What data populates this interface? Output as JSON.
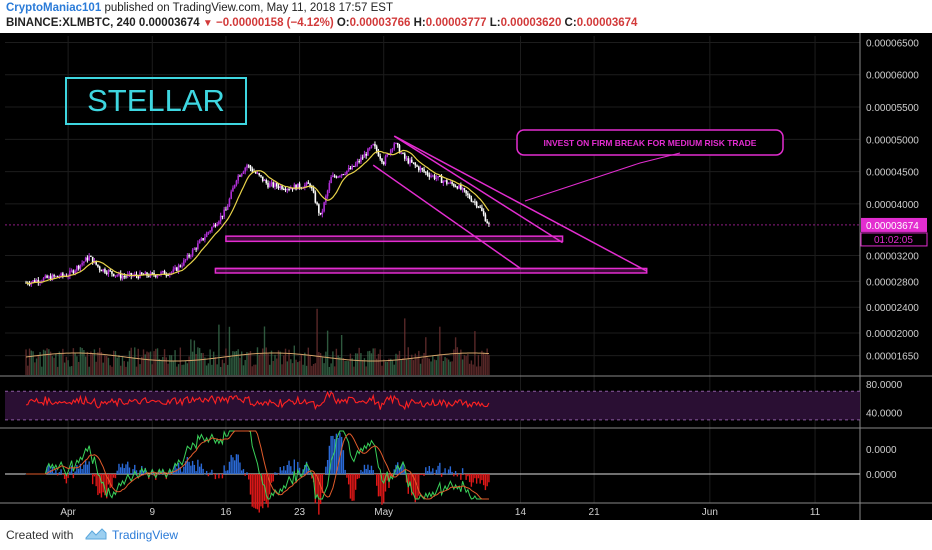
{
  "header": {
    "author": "CryptoManiac101",
    "published_text": "published on TradingView.com, May 11, 2018 17:57 EST",
    "symbol": "BINANCE:XLMBTC, 240",
    "last": "0.00003674",
    "change": "−0.00000158 (−4.12%)",
    "open_label": "O:",
    "open": "0.00003766",
    "high_label": "H:",
    "high": "0.00003777",
    "low_label": "L:",
    "low": "0.00003620",
    "close_label": "C:",
    "close": "0.00003674"
  },
  "footer": {
    "created_with": "Created with",
    "brand": "TradingView"
  },
  "colors": {
    "background": "#000000",
    "up": "#b02fd6",
    "down": "#ffffff",
    "annotation": "#e32dd0",
    "stellar": "#3ed6e0",
    "rsi": "#ff2222",
    "ma": "#e8d34a"
  },
  "chart_data": {
    "type": "candlestick",
    "symbol": "BINANCE:XLMBTC",
    "timeframe": "240",
    "x_tick_labels": [
      "Apr",
      "9",
      "16",
      "23",
      "May",
      "14",
      "21",
      "Jun",
      "11"
    ],
    "price_axis_labels": [
      "0.00006500",
      "0.00006000",
      "0.00005500",
      "0.00005000",
      "0.00004500",
      "0.00004000",
      "0.00003200",
      "0.00002800",
      "0.00002400",
      "0.00002000",
      "0.00001650"
    ],
    "price_range": [
      1.35e-05,
      6.6e-05
    ],
    "current_price": "0.00003674",
    "countdown": "01:02:05",
    "price_path": [
      {
        "date": "Mar 28",
        "price": 2.78e-05
      },
      {
        "date": "Mar 30",
        "price": 2.85e-05
      },
      {
        "date": "Apr 1",
        "price": 2.9e-05
      },
      {
        "date": "Apr 3",
        "price": 3.18e-05
      },
      {
        "date": "Apr 4",
        "price": 3e-05
      },
      {
        "date": "Apr 6",
        "price": 2.88e-05
      },
      {
        "date": "Apr 9",
        "price": 2.9e-05
      },
      {
        "date": "Apr 11",
        "price": 2.95e-05
      },
      {
        "date": "Apr 12",
        "price": 3.1e-05
      },
      {
        "date": "Apr 14",
        "price": 3.5e-05
      },
      {
        "date": "Apr 16",
        "price": 3.9e-05
      },
      {
        "date": "Apr 17",
        "price": 4.4e-05
      },
      {
        "date": "Apr 18",
        "price": 4.6e-05
      },
      {
        "date": "Apr 19",
        "price": 4.45e-05
      },
      {
        "date": "Apr 20",
        "price": 4.3e-05
      },
      {
        "date": "Apr 22",
        "price": 4.25e-05
      },
      {
        "date": "Apr 24",
        "price": 4.3e-05
      },
      {
        "date": "Apr 25",
        "price": 3.8e-05
      },
      {
        "date": "Apr 26",
        "price": 4.4e-05
      },
      {
        "date": "Apr 28",
        "price": 4.55e-05
      },
      {
        "date": "Apr 30",
        "price": 4.9e-05
      },
      {
        "date": "May 1",
        "price": 4.65e-05
      },
      {
        "date": "May 2",
        "price": 4.95e-05
      },
      {
        "date": "May 3",
        "price": 4.7e-05
      },
      {
        "date": "May 5",
        "price": 4.48e-05
      },
      {
        "date": "May 7",
        "price": 4.33e-05
      },
      {
        "date": "May 8",
        "price": 4.28e-05
      },
      {
        "date": "May 9",
        "price": 4.12e-05
      },
      {
        "date": "May 10",
        "price": 3.98e-05
      },
      {
        "date": "May 11",
        "price": 3.67e-05
      }
    ],
    "indicators": {
      "rsi_levels": [
        "80.0000",
        "40.0000"
      ],
      "macd_levels": [
        "0.0000",
        "0.0000"
      ]
    },
    "annotations": {
      "title_box": "STELLAR",
      "callout": "INVEST ON FIRM BREAK FOR MEDIUM RISK TRADE",
      "support_zones": [
        {
          "low": 3.42e-05,
          "high": 3.5e-05
        },
        {
          "low": 2.93e-05,
          "high": 3e-05
        }
      ],
      "channel_upper": [
        {
          "date": "May 2",
          "price": 5.05e-05
        },
        {
          "date": "May 18",
          "price": 3.4e-05
        }
      ],
      "channel_lower": [
        {
          "date": "Apr 30",
          "price": 4.6e-05
        },
        {
          "date": "May 14",
          "price": 3e-05
        }
      ],
      "triangle_base": [
        {
          "date": "Apr 15",
          "price": 3e-05
        },
        {
          "date": "May 21",
          "price": 3e-05
        }
      ]
    }
  }
}
